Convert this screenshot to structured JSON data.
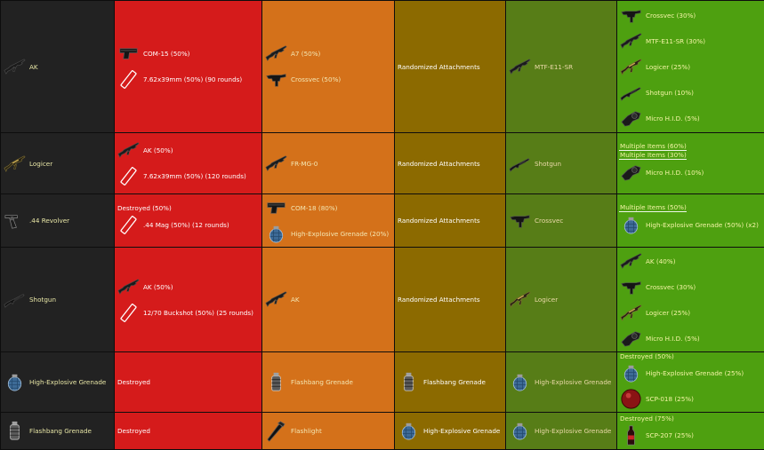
{
  "rows": [
    {
      "input": {
        "icon": "rifle-icon",
        "label": "AK"
      },
      "rough": {
        "items": [
          {
            "icon": "pistol-icon",
            "label": "COM-15 (50%)"
          },
          {
            "icon": "ammo-icon",
            "label": "7.62x39mm (50%) (90 rounds)"
          }
        ]
      },
      "coarse": {
        "items": [
          {
            "icon": "rifle-icon",
            "label": "A7 (50%)"
          },
          {
            "icon": "smg-icon",
            "label": "Crossvec (50%)"
          }
        ]
      },
      "one_to_one": {
        "items": [
          {
            "label": "Randomized Attachments"
          }
        ]
      },
      "fine": {
        "items": [
          {
            "icon": "rifle-icon",
            "label": "MTF-E11-SR"
          }
        ]
      },
      "very_fine": {
        "items": [
          {
            "icon": "smg-icon",
            "label": "Crossvec (30%)"
          },
          {
            "icon": "rifle-icon",
            "label": "MTF-E11-SR (30%)"
          },
          {
            "icon": "gold-rifle-icon",
            "label": "Logicer (25%)"
          },
          {
            "icon": "shotgun-icon",
            "label": "Shotgun (10%)"
          },
          {
            "icon": "micro-hid-icon",
            "label": "Micro H.I.D. (5%)"
          }
        ]
      }
    },
    {
      "input": {
        "icon": "gold-rifle-icon",
        "label": "Logicer"
      },
      "rough": {
        "items": [
          {
            "icon": "rifle-icon",
            "label": "AK (50%)"
          },
          {
            "icon": "ammo-icon",
            "label": "7.62x39mm (50%) (120 rounds)"
          }
        ]
      },
      "coarse": {
        "items": [
          {
            "icon": "rifle-icon",
            "label": "FR-MG-0"
          }
        ]
      },
      "one_to_one": {
        "items": [
          {
            "label": "Randomized Attachments"
          }
        ]
      },
      "fine": {
        "items": [
          {
            "icon": "shotgun-icon",
            "label": "Shotgun"
          }
        ]
      },
      "very_fine": {
        "tags": [
          "Multiple Items (60%)",
          "Multiple Items (30%)"
        ],
        "items": [
          {
            "icon": "micro-hid-icon",
            "label": "Micro H.I.D. (10%)"
          }
        ]
      }
    },
    {
      "input": {
        "icon": "revolver-icon",
        "label": ".44 Revolver"
      },
      "rough": {
        "tags": [
          "Destroyed (50%)"
        ],
        "items": [
          {
            "icon": "ammo-icon",
            "label": ".44 Mag (50%) (12 rounds)"
          }
        ]
      },
      "coarse": {
        "items": [
          {
            "icon": "pistol-icon",
            "label": "COM-18 (80%)"
          },
          {
            "icon": "grenade-icon",
            "label": "High-Explosive Grenade (20%)"
          }
        ]
      },
      "one_to_one": {
        "items": [
          {
            "label": "Randomized Attachments"
          }
        ]
      },
      "fine": {
        "items": [
          {
            "icon": "smg-icon",
            "label": "Crossvec"
          }
        ]
      },
      "very_fine": {
        "tags": [
          "Multiple Items (50%)"
        ],
        "items": [
          {
            "icon": "grenade-icon",
            "label": "High-Explosive Grenade (50%) (x2)"
          }
        ]
      }
    },
    {
      "input": {
        "icon": "shotgun-icon",
        "label": "Shotgun"
      },
      "rough": {
        "items": [
          {
            "icon": "rifle-icon",
            "label": "AK (50%)"
          },
          {
            "icon": "ammo-icon",
            "label": "12/70 Buckshot (50%) (25 rounds)"
          }
        ]
      },
      "coarse": {
        "items": [
          {
            "icon": "rifle-icon",
            "label": "AK"
          }
        ]
      },
      "one_to_one": {
        "items": [
          {
            "label": "Randomized Attachments"
          }
        ]
      },
      "fine": {
        "items": [
          {
            "icon": "gold-rifle-icon",
            "label": "Logicer"
          }
        ]
      },
      "very_fine": {
        "items": [
          {
            "icon": "rifle-icon",
            "label": "AK (40%)"
          },
          {
            "icon": "smg-icon",
            "label": "Crossvec (30%)"
          },
          {
            "icon": "gold-rifle-icon",
            "label": "Logicer (25%)"
          },
          {
            "icon": "micro-hid-icon",
            "label": "Micro H.I.D. (5%)"
          }
        ]
      }
    },
    {
      "input": {
        "icon": "grenade-icon",
        "label": "High-Explosive Grenade"
      },
      "rough": {
        "items": [
          {
            "label": "Destroyed"
          }
        ]
      },
      "coarse": {
        "items": [
          {
            "icon": "flashbang-icon",
            "label": "Flashbang Grenade"
          }
        ]
      },
      "one_to_one": {
        "items": [
          {
            "icon": "flashbang-icon",
            "label": "Flashbang Grenade"
          }
        ]
      },
      "fine": {
        "items": [
          {
            "icon": "grenade-icon",
            "label": "High-Explosive Grenade"
          }
        ]
      },
      "very_fine": {
        "tags": [
          "Destroyed (50%)"
        ],
        "items": [
          {
            "icon": "grenade-icon",
            "label": "High-Explosive Grenade (25%)"
          },
          {
            "icon": "scp018-icon",
            "label": "SCP-018 (25%)"
          }
        ]
      }
    },
    {
      "input": {
        "icon": "flashbang-icon",
        "label": "Flashbang Grenade"
      },
      "rough": {
        "items": [
          {
            "label": "Destroyed"
          }
        ]
      },
      "coarse": {
        "items": [
          {
            "icon": "flashlight-icon",
            "label": "Flashlight"
          }
        ]
      },
      "one_to_one": {
        "items": [
          {
            "icon": "grenade-icon",
            "label": "High-Explosive Grenade"
          }
        ]
      },
      "fine": {
        "items": [
          {
            "icon": "grenade-icon",
            "label": "High-Explosive Grenade"
          }
        ]
      },
      "very_fine": {
        "tags": [
          "Destroyed (75%)"
        ],
        "items": [
          {
            "icon": "scp207-icon",
            "label": "SCP-207 (25%)"
          }
        ]
      }
    }
  ]
}
